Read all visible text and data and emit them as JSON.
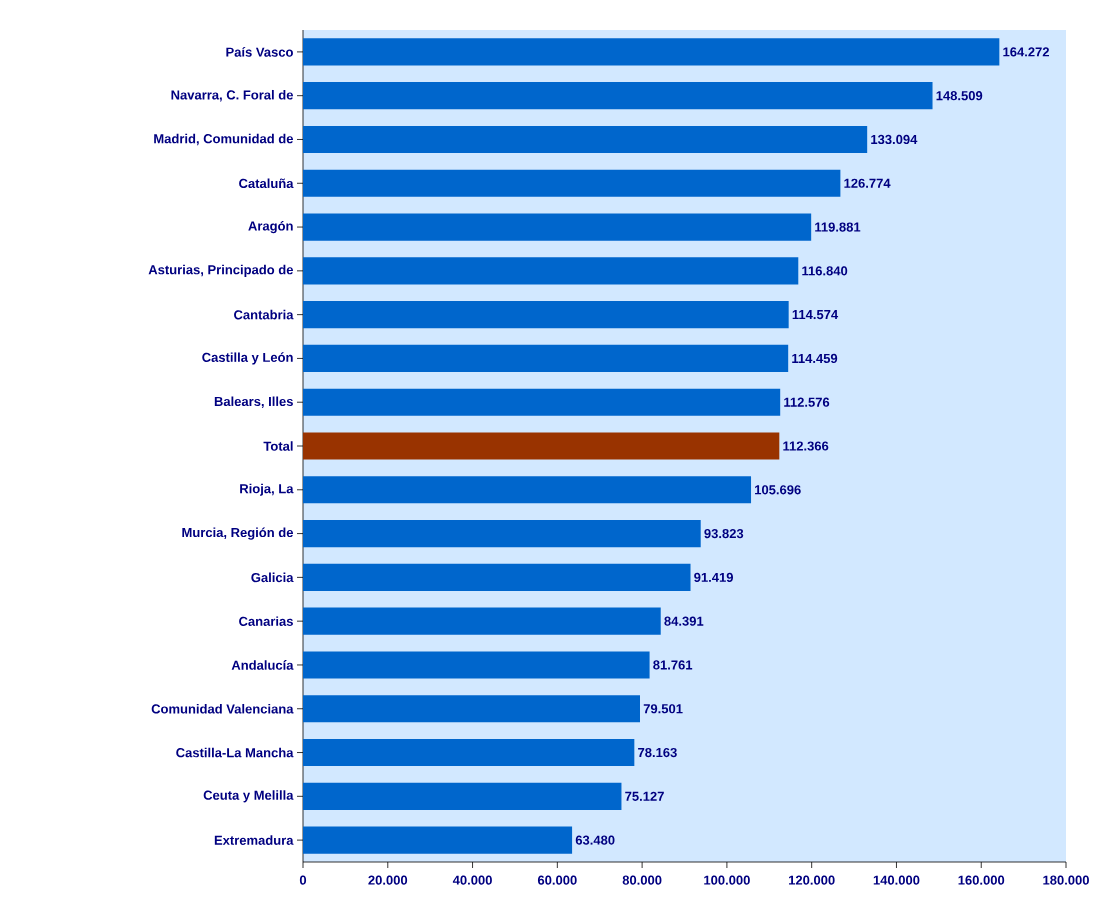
{
  "chart_data": {
    "type": "bar",
    "orientation": "horizontal",
    "categories": [
      "País Vasco",
      "Navarra, C. Foral de",
      "Madrid, Comunidad de",
      "Cataluña",
      "Aragón",
      "Asturias, Principado de",
      "Cantabria",
      "Castilla y León",
      "Balears, Illes",
      "Total",
      "Rioja, La",
      "Murcia, Región de",
      "Galicia",
      "Canarias",
      "Andalucía",
      "Comunidad Valenciana",
      "Castilla-La Mancha",
      "Ceuta y Melilla",
      "Extremadura"
    ],
    "values": [
      164272,
      148509,
      133094,
      126774,
      119881,
      116840,
      114574,
      114459,
      112576,
      112366,
      105696,
      93823,
      91419,
      84391,
      81761,
      79501,
      78163,
      75127,
      63480
    ],
    "value_labels": [
      "164.272",
      "148.509",
      "133.094",
      "126.774",
      "119.881",
      "116.840",
      "114.574",
      "114.459",
      "112.576",
      "112.366",
      "105.696",
      "93.823",
      "91.419",
      "84.391",
      "81.761",
      "79.501",
      "78.163",
      "75.127",
      "63.480"
    ],
    "colors": [
      "#0066cc",
      "#0066cc",
      "#0066cc",
      "#0066cc",
      "#0066cc",
      "#0066cc",
      "#0066cc",
      "#0066cc",
      "#0066cc",
      "#993300",
      "#0066cc",
      "#0066cc",
      "#0066cc",
      "#0066cc",
      "#0066cc",
      "#0066cc",
      "#0066cc",
      "#0066cc",
      "#0066cc"
    ],
    "xlim": [
      0,
      180000
    ],
    "xticks": [
      0,
      {
        "value": 20000,
        "label": "20.000"
      },
      {
        "value": 40000,
        "label": "40.000"
      },
      {
        "value": 60000,
        "label": "60.000"
      },
      {
        "value": 80000,
        "label": "80.000"
      },
      {
        "value": 100000,
        "label": "100.000"
      },
      {
        "value": 120000,
        "label": "120.000"
      },
      {
        "value": 140000,
        "label": "140.000"
      },
      {
        "value": 160000,
        "label": "160.000"
      },
      {
        "value": 180000,
        "label": "180.000"
      }
    ]
  }
}
